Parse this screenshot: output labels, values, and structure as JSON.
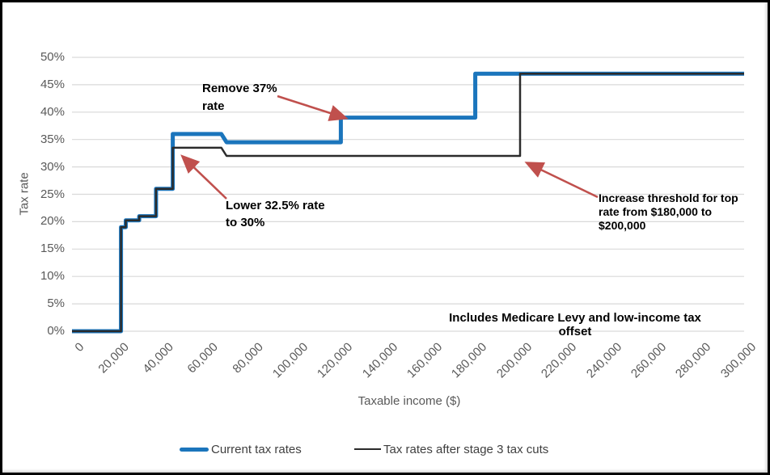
{
  "colors": {
    "current_line": "#1B75BC",
    "stage3_line": "#2B2B2B",
    "arrow": "#C0504D",
    "gridline": "#D9D9D9",
    "axis_text": "#595959"
  },
  "chart_data": {
    "type": "line",
    "subtype": "step",
    "title": "",
    "xlabel": "Taxable income ($)",
    "ylabel": "Tax rate",
    "xlim": [
      0,
      300000
    ],
    "ylim_pct": [
      0,
      50
    ],
    "grid": "horizontal",
    "legend_position": "bottom",
    "x_ticks": [
      {
        "value": 0,
        "label": "0"
      },
      {
        "value": 20000,
        "label": "20,000"
      },
      {
        "value": 40000,
        "label": "40,000"
      },
      {
        "value": 60000,
        "label": "60,000"
      },
      {
        "value": 80000,
        "label": "80,000"
      },
      {
        "value": 100000,
        "label": "100,000"
      },
      {
        "value": 120000,
        "label": "120,000"
      },
      {
        "value": 140000,
        "label": "140,000"
      },
      {
        "value": 160000,
        "label": "160,000"
      },
      {
        "value": 180000,
        "label": "180,000"
      },
      {
        "value": 200000,
        "label": "200,000"
      },
      {
        "value": 220000,
        "label": "220,000"
      },
      {
        "value": 240000,
        "label": "240,000"
      },
      {
        "value": 260000,
        "label": "260,000"
      },
      {
        "value": 280000,
        "label": "280,000"
      },
      {
        "value": 300000,
        "label": "300,000"
      }
    ],
    "y_ticks": [
      {
        "value": 0,
        "label": "0%"
      },
      {
        "value": 5,
        "label": "5%"
      },
      {
        "value": 10,
        "label": "10%"
      },
      {
        "value": 15,
        "label": "15%"
      },
      {
        "value": 20,
        "label": "20%"
      },
      {
        "value": 25,
        "label": "25%"
      },
      {
        "value": 30,
        "label": "30%"
      },
      {
        "value": 35,
        "label": "35%"
      },
      {
        "value": 40,
        "label": "40%"
      },
      {
        "value": 45,
        "label": "45%"
      },
      {
        "value": 50,
        "label": "50%"
      }
    ],
    "series": [
      {
        "name": "Current tax rates",
        "color": "#1B75BC",
        "stroke_width": 5,
        "points": [
          [
            0,
            0
          ],
          [
            21884,
            0
          ],
          [
            21884,
            19
          ],
          [
            24000,
            19
          ],
          [
            24000,
            20.25
          ],
          [
            30000,
            20.25
          ],
          [
            30000,
            21
          ],
          [
            37500,
            21
          ],
          [
            37500,
            26
          ],
          [
            45000,
            26
          ],
          [
            45000,
            36
          ],
          [
            66667,
            36
          ],
          [
            69000,
            34.5
          ],
          [
            120000,
            34.5
          ],
          [
            120000,
            39
          ],
          [
            180000,
            39
          ],
          [
            180000,
            47
          ],
          [
            300000,
            47
          ]
        ]
      },
      {
        "name": "Tax rates after stage 3 tax cuts",
        "color": "#2B2B2B",
        "stroke_width": 2.5,
        "points": [
          [
            0,
            0
          ],
          [
            21884,
            0
          ],
          [
            21884,
            19
          ],
          [
            24000,
            19
          ],
          [
            24000,
            20.25
          ],
          [
            30000,
            20.25
          ],
          [
            30000,
            21
          ],
          [
            37500,
            21
          ],
          [
            37500,
            26
          ],
          [
            45000,
            26
          ],
          [
            45000,
            33.5
          ],
          [
            66667,
            33.5
          ],
          [
            69000,
            32
          ],
          [
            200000,
            32
          ],
          [
            200000,
            47
          ],
          [
            300000,
            47
          ]
        ]
      }
    ],
    "annotations": [
      {
        "lines": [
          "Remove 37%",
          "rate"
        ]
      },
      {
        "lines": [
          "Lower 32.5% rate",
          "to 30%"
        ]
      },
      {
        "lines": [
          "Increase threshold for top",
          "rate from $180,000 to",
          "$200,000"
        ]
      }
    ],
    "note": "Includes Medicare Levy and low-income tax offset"
  },
  "legend": {
    "current_label": "Current tax rates",
    "stage3_label": "Tax rates after stage 3 tax cuts"
  },
  "axes": {
    "y_title": "Tax rate",
    "x_title": "Taxable income ($)"
  }
}
